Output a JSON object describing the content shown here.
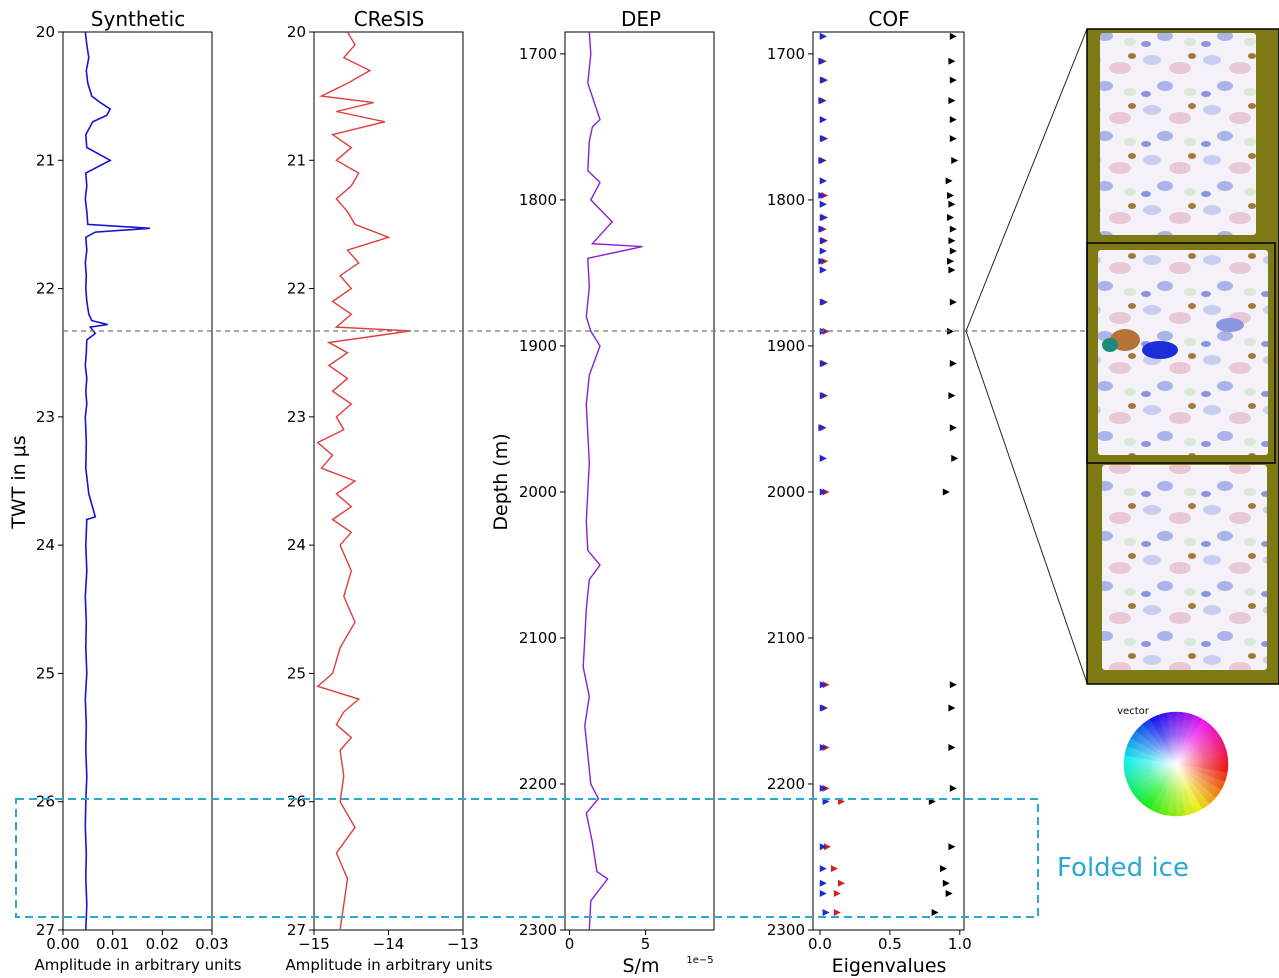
{
  "colors": {
    "synthetic": "#1414d2",
    "cresis": "#e03c3c",
    "dep": "#8a1fd6",
    "cof_e1": "#d42020",
    "cof_e2": "#1a2ad8",
    "cof_e3": "#000000",
    "folded_box": "#29a9cf",
    "ref_line": "#777777",
    "thin_section_bg": "#7d7a14"
  },
  "legend": {
    "colorwheel_label": "vector"
  },
  "annotations": {
    "folded_ice": "Folded ice"
  },
  "chart_data": [
    {
      "type": "line",
      "title": "Synthetic",
      "xlabel": "Amplitude in arbitrary units",
      "ylabel": "TWT in μs",
      "xlim": [
        0.0,
        0.03
      ],
      "ylim": [
        27,
        20
      ],
      "xticks": [
        "0.00",
        "0.01",
        "0.02",
        "0.03"
      ],
      "yticks": [
        "20",
        "21",
        "22",
        "23",
        "24",
        "25",
        "26",
        "27"
      ],
      "series": [
        {
          "y": [
            20.0,
            20.1,
            20.2,
            20.3,
            20.4,
            20.5,
            20.55,
            20.6,
            20.65,
            20.7,
            20.8,
            20.9,
            21.0,
            21.1,
            21.2,
            21.3,
            21.4,
            21.5,
            21.53,
            21.56,
            21.6,
            21.7,
            21.8,
            21.9,
            22.0,
            22.1,
            22.2,
            22.25,
            22.28,
            22.3,
            22.35,
            22.4,
            22.5,
            22.6,
            22.7,
            22.8,
            22.9,
            23.0,
            23.2,
            23.4,
            23.6,
            23.78,
            23.8,
            24.0,
            24.2,
            24.4,
            24.6,
            24.8,
            25.0,
            25.2,
            25.4,
            25.6,
            25.8,
            26.0,
            26.2,
            26.4,
            26.6,
            26.8,
            27.0
          ],
          "x": [
            0.0045,
            0.0048,
            0.0052,
            0.0047,
            0.005,
            0.0058,
            0.0075,
            0.0095,
            0.0088,
            0.006,
            0.0046,
            0.0048,
            0.0095,
            0.0046,
            0.0048,
            0.0045,
            0.0048,
            0.005,
            0.0175,
            0.0065,
            0.0046,
            0.0048,
            0.0045,
            0.0047,
            0.0046,
            0.0048,
            0.0052,
            0.0058,
            0.009,
            0.0055,
            0.0065,
            0.0048,
            0.0047,
            0.0045,
            0.0048,
            0.0046,
            0.0048,
            0.0045,
            0.0047,
            0.0046,
            0.0052,
            0.0065,
            0.0048,
            0.0046,
            0.0048,
            0.0045,
            0.0047,
            0.0046,
            0.0048,
            0.0045,
            0.0047,
            0.0046,
            0.0048,
            0.0046,
            0.0045,
            0.0047,
            0.0046,
            0.0048,
            0.0046
          ]
        }
      ]
    },
    {
      "type": "line",
      "title": "CReSIS",
      "xlabel": "Amplitude in arbitrary units",
      "ylabel": "",
      "xlim": [
        -15,
        -13
      ],
      "ylim": [
        27,
        20
      ],
      "xticks": [
        "−15",
        "−14",
        "−13"
      ],
      "yticks": [
        "20",
        "21",
        "22",
        "23",
        "24",
        "25",
        "26",
        "27"
      ],
      "series": [
        {
          "y": [
            20.0,
            20.1,
            20.2,
            20.3,
            20.4,
            20.5,
            20.55,
            20.62,
            20.7,
            20.8,
            20.9,
            21.0,
            21.1,
            21.2,
            21.3,
            21.4,
            21.5,
            21.6,
            21.7,
            21.8,
            21.9,
            22.0,
            22.1,
            22.2,
            22.3,
            22.33,
            22.42,
            22.5,
            22.6,
            22.7,
            22.8,
            22.9,
            23.0,
            23.1,
            23.2,
            23.3,
            23.4,
            23.5,
            23.6,
            23.7,
            23.8,
            23.9,
            24.0,
            24.2,
            24.4,
            24.6,
            24.8,
            25.0,
            25.1,
            25.2,
            25.3,
            25.4,
            25.5,
            25.6,
            25.8,
            26.0,
            26.2,
            26.4,
            26.6,
            26.8,
            27.0
          ],
          "x": [
            -14.55,
            -14.45,
            -14.6,
            -14.25,
            -14.55,
            -14.9,
            -14.2,
            -14.7,
            -14.05,
            -14.75,
            -14.5,
            -14.7,
            -14.4,
            -14.5,
            -14.7,
            -14.55,
            -14.45,
            -14.0,
            -14.55,
            -14.4,
            -14.65,
            -14.5,
            -14.75,
            -14.5,
            -14.7,
            -13.7,
            -14.8,
            -14.55,
            -14.8,
            -14.55,
            -14.75,
            -14.5,
            -14.7,
            -14.6,
            -14.95,
            -14.75,
            -14.9,
            -14.45,
            -14.7,
            -14.5,
            -14.75,
            -14.5,
            -14.65,
            -14.5,
            -14.6,
            -14.45,
            -14.65,
            -14.75,
            -14.95,
            -14.4,
            -14.6,
            -14.7,
            -14.5,
            -14.65,
            -14.6,
            -14.65,
            -14.45,
            -14.7,
            -14.55,
            -14.6,
            -14.65
          ]
        }
      ]
    },
    {
      "type": "line",
      "title": "DEP",
      "xlabel": "S/m",
      "ylabel": "Depth (m)",
      "offset_text": "1e−5",
      "xlim": [
        -0.3,
        9.5
      ],
      "ylim": [
        2300,
        1685
      ],
      "xticks": [
        "0",
        "5"
      ],
      "yticks": [
        "1700",
        "1800",
        "1900",
        "2000",
        "2100",
        "2200",
        "2300"
      ],
      "series": [
        {
          "y": [
            1685,
            1700,
            1720,
            1745,
            1750,
            1760,
            1780,
            1788,
            1800,
            1815,
            1830,
            1832,
            1840,
            1860,
            1880,
            1890,
            1900,
            1920,
            1940,
            1960,
            1980,
            2000,
            2020,
            2040,
            2050,
            2060,
            2080,
            2100,
            2120,
            2140,
            2160,
            2180,
            2200,
            2210,
            2220,
            2240,
            2260,
            2265,
            2280,
            2300
          ],
          "x": [
            1.3,
            1.4,
            1.2,
            2.0,
            1.5,
            1.3,
            1.2,
            2.0,
            1.4,
            2.8,
            1.5,
            4.8,
            1.2,
            1.3,
            1.1,
            1.4,
            2.0,
            1.3,
            1.1,
            1.2,
            1.3,
            1.2,
            1.1,
            1.2,
            2.0,
            1.3,
            1.1,
            1.0,
            0.9,
            1.3,
            1.0,
            1.2,
            1.4,
            1.9,
            1.1,
            1.5,
            1.8,
            2.5,
            1.4,
            1.3
          ]
        }
      ]
    },
    {
      "type": "scatter",
      "title": "COF",
      "xlabel": "Eigenvalues",
      "ylabel": "",
      "xlim": [
        -0.05,
        1.03
      ],
      "ylim": [
        2300,
        1685
      ],
      "xticks": [
        "0.0",
        "0.5",
        "1.0"
      ],
      "yticks": [
        "1700",
        "1800",
        "1900",
        "2000",
        "2100",
        "2200",
        "2300"
      ],
      "series": [
        {
          "y": [
            1688,
            1705,
            1718,
            1732,
            1745,
            1758,
            1773,
            1787,
            1797,
            1803,
            1812,
            1820,
            1828,
            1835,
            1842,
            1848,
            1870,
            1890,
            1912,
            1934,
            1956,
            1977,
            2000,
            2132,
            2148,
            2175,
            2203,
            2212,
            2243,
            2258,
            2268,
            2275,
            2288
          ],
          "x": [
            0.02,
            0.02,
            0.03,
            0.02,
            0.02,
            0.03,
            0.02,
            0.02,
            0.03,
            0.02,
            0.03,
            0.02,
            0.03,
            0.02,
            0.03,
            0.02,
            0.03,
            0.04,
            0.03,
            0.03,
            0.02,
            0.02,
            0.04,
            0.04,
            0.03,
            0.04,
            0.04,
            0.15,
            0.05,
            0.1,
            0.15,
            0.12,
            0.12
          ]
        },
        {
          "y": [
            1688,
            1705,
            1718,
            1732,
            1745,
            1758,
            1773,
            1787,
            1797,
            1803,
            1812,
            1820,
            1828,
            1835,
            1842,
            1848,
            1870,
            1890,
            1912,
            1934,
            1956,
            1977,
            2000,
            2132,
            2148,
            2175,
            2203,
            2212,
            2243,
            2258,
            2268,
            2275,
            2288
          ],
          "x": [
            0.02,
            0.01,
            0.02,
            0.01,
            0.02,
            0.02,
            0.01,
            0.02,
            0.01,
            0.02,
            0.02,
            0.01,
            0.02,
            0.02,
            0.01,
            0.02,
            0.02,
            0.02,
            0.02,
            0.02,
            0.01,
            0.02,
            0.02,
            0.02,
            0.02,
            0.02,
            0.02,
            0.04,
            0.02,
            0.02,
            0.02,
            0.02,
            0.04
          ]
        },
        {
          "y": [
            1688,
            1705,
            1718,
            1732,
            1745,
            1758,
            1773,
            1787,
            1797,
            1803,
            1812,
            1820,
            1828,
            1835,
            1842,
            1848,
            1870,
            1890,
            1912,
            1934,
            1956,
            1977,
            2000,
            2132,
            2148,
            2175,
            2203,
            2212,
            2243,
            2258,
            2268,
            2275,
            2288
          ],
          "x": [
            0.95,
            0.94,
            0.95,
            0.94,
            0.95,
            0.95,
            0.96,
            0.92,
            0.93,
            0.94,
            0.93,
            0.95,
            0.94,
            0.95,
            0.93,
            0.94,
            0.95,
            0.93,
            0.95,
            0.94,
            0.95,
            0.96,
            0.9,
            0.95,
            0.94,
            0.94,
            0.95,
            0.8,
            0.94,
            0.88,
            0.9,
            0.92,
            0.82
          ]
        }
      ]
    }
  ]
}
